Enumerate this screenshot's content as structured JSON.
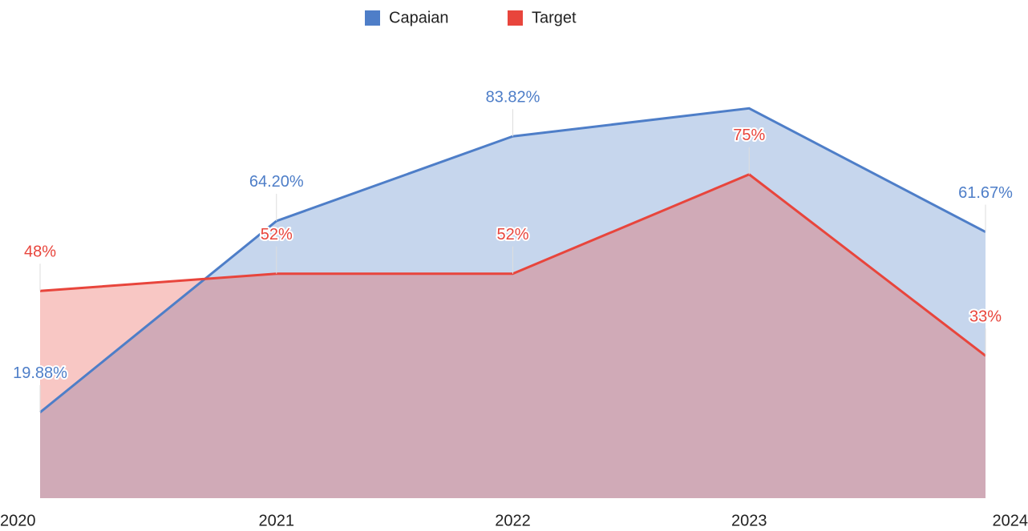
{
  "chart_data": {
    "type": "area",
    "categories": [
      "2020",
      "2021",
      "2022",
      "2023",
      "2024"
    ],
    "series": [
      {
        "name": "Capaian",
        "color": "#4e7ec8",
        "values": [
          19.88,
          64.2,
          83.82,
          90.3,
          61.67
        ],
        "value_labels": [
          "19.88%",
          "64.20%",
          "83.82%",
          null,
          "61.67%"
        ]
      },
      {
        "name": "Target",
        "color": "#e8453c",
        "values": [
          48,
          52,
          52,
          75,
          33
        ],
        "value_labels": [
          "48%",
          "52%",
          "52%",
          "75%",
          "33%"
        ]
      }
    ],
    "ylim": [
      0,
      100
    ],
    "legend": "top"
  }
}
